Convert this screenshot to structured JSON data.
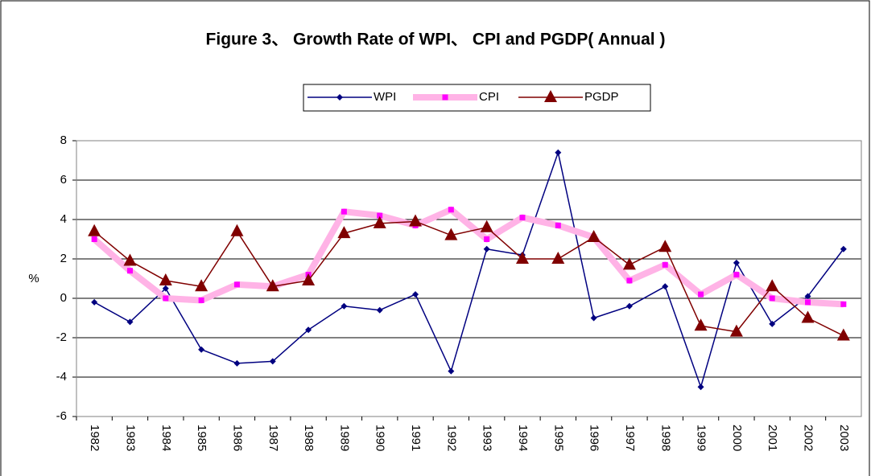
{
  "chart_data": {
    "type": "line",
    "title": "Figure 3、 Growth Rate of WPI、 CPI and PGDP( Annual )",
    "y_label": "%",
    "categories": [
      "1982",
      "1983",
      "1984",
      "1985",
      "1986",
      "1987",
      "1988",
      "1989",
      "1990",
      "1991",
      "1992",
      "1993",
      "1994",
      "1995",
      "1996",
      "1997",
      "1998",
      "1999",
      "2000",
      "2001",
      "2002",
      "2003"
    ],
    "series": [
      {
        "name": "WPI",
        "color": "#000080",
        "values": [
          -0.2,
          -1.2,
          0.5,
          -2.6,
          -3.3,
          -3.2,
          -1.6,
          -0.4,
          -0.6,
          0.2,
          -3.7,
          2.5,
          2.2,
          7.4,
          -1.0,
          -0.4,
          0.6,
          -4.5,
          1.8,
          -1.3,
          0.1,
          2.5
        ]
      },
      {
        "name": "CPI",
        "color": "#FF00FF",
        "values": [
          3.0,
          1.4,
          0.0,
          -0.1,
          0.7,
          0.6,
          1.2,
          4.4,
          4.2,
          3.7,
          4.5,
          3.0,
          4.1,
          3.7,
          3.1,
          0.9,
          1.7,
          0.2,
          1.2,
          0.0,
          -0.2,
          -0.3
        ]
      },
      {
        "name": "PGDP",
        "color": "#800000",
        "values": [
          3.4,
          1.9,
          0.9,
          0.6,
          3.4,
          0.6,
          0.9,
          3.3,
          3.8,
          3.9,
          3.2,
          3.6,
          2.0,
          2.0,
          3.1,
          1.7,
          2.6,
          -1.4,
          -1.7,
          0.6,
          -1.0,
          -1.9
        ]
      }
    ],
    "ylim": [
      -6,
      8
    ],
    "yticks": [
      -6,
      -4,
      -2,
      0,
      2,
      4,
      6,
      8
    ],
    "grid": true,
    "legend": "top"
  }
}
